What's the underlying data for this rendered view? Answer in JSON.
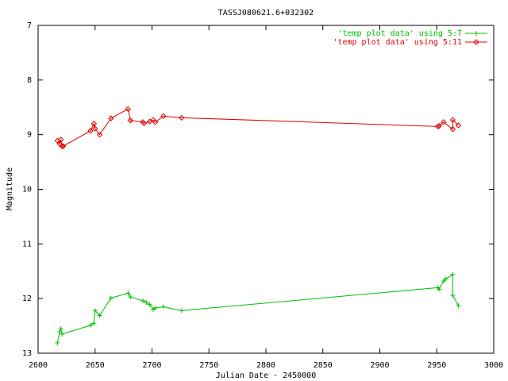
{
  "chart_data": {
    "type": "line",
    "title": "TASSJ080621.6+032302",
    "x_label": "Julian Date - 2450000",
    "y_label": "Magnitude",
    "xlim": [
      2600,
      3000
    ],
    "xticks": [
      2600,
      2650,
      2700,
      2750,
      2800,
      2850,
      2900,
      2950,
      3000
    ],
    "ylim": [
      7,
      13
    ],
    "yticks": [
      7,
      8,
      9,
      10,
      11,
      12,
      13
    ],
    "y_inverted": true,
    "legend": "top-right",
    "series": [
      {
        "name": "'temp plot data' using 5:7",
        "color": "#00c000",
        "marker": "plus",
        "x": [
          2617,
          2619,
          2620,
          2621,
          2646,
          2649,
          2650,
          2654,
          2664,
          2679,
          2681,
          2692,
          2695,
          2698,
          2701,
          2703,
          2710,
          2726,
          2951,
          2952,
          2956,
          2958,
          2964,
          2964,
          2969
        ],
        "values": [
          12.81,
          12.61,
          12.55,
          12.65,
          12.49,
          12.45,
          12.22,
          12.31,
          11.99,
          11.9,
          11.97,
          12.04,
          12.07,
          12.11,
          12.2,
          12.17,
          12.15,
          12.22,
          11.8,
          11.83,
          11.68,
          11.64,
          11.56,
          11.94,
          12.13
        ]
      },
      {
        "name": "'temp plot data' using 5:11",
        "color": "#e00000",
        "marker": "diamond",
        "x": [
          2617,
          2619,
          2620,
          2621,
          2622,
          2646,
          2649,
          2650,
          2654,
          2664,
          2679,
          2681,
          2692,
          2693,
          2698,
          2701,
          2703,
          2710,
          2726,
          2951,
          2952,
          2956,
          2964,
          2964,
          2969
        ],
        "values": [
          9.11,
          9.17,
          9.09,
          9.21,
          9.21,
          8.93,
          8.8,
          8.89,
          9.0,
          8.7,
          8.53,
          8.74,
          8.77,
          8.79,
          8.76,
          8.73,
          8.77,
          8.66,
          8.69,
          8.85,
          8.84,
          8.77,
          8.9,
          8.73,
          8.83
        ]
      }
    ]
  }
}
